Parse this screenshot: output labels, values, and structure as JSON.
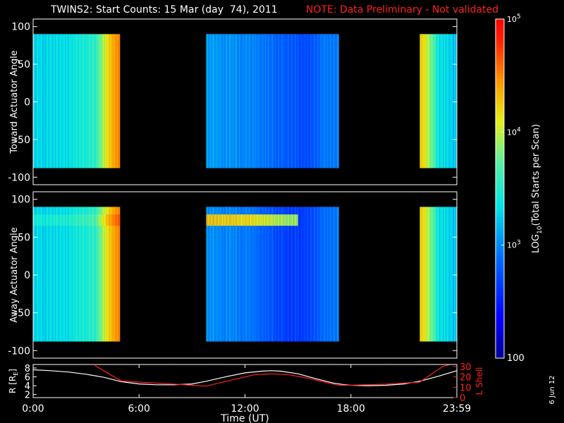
{
  "title": {
    "main": "TWINS2: Start Counts: 15 Mar (day  74), 2011",
    "note": "NOTE: Data Preliminary - Not validated",
    "note_color": "#ff2020"
  },
  "date_stamp": "6 Jun 12",
  "colors": {
    "axes": "#ffffff",
    "background": "#000000",
    "lshell": "#ff2020",
    "radius": "#ffffff"
  },
  "chart_data": [
    {
      "type": "heatmap",
      "ylabel": "Toward Actuator Angle",
      "xlim": [
        0,
        24
      ],
      "ylim": [
        -110,
        110
      ],
      "y_ticks": [
        "-100",
        "-50",
        "0",
        "50",
        "100"
      ],
      "y_tick_values": [
        -100,
        -50,
        0,
        50,
        100
      ],
      "data_angle_range": [
        -88,
        90
      ],
      "data_intervals_hours": [
        [
          0.0,
          4.9
        ],
        [
          9.8,
          17.3
        ],
        [
          21.9,
          24.0
        ]
      ],
      "log_counts_by_hour": [
        [
          0.0,
          3.35
        ],
        [
          2.0,
          3.4
        ],
        [
          3.5,
          3.6
        ],
        [
          4.2,
          4.2
        ],
        [
          4.6,
          4.5
        ],
        [
          4.9,
          4.5
        ],
        [
          9.8,
          3.15
        ],
        [
          11.0,
          3.1
        ],
        [
          12.0,
          3.05
        ],
        [
          13.0,
          3.0
        ],
        [
          14.5,
          2.85
        ],
        [
          15.5,
          2.8
        ],
        [
          16.5,
          3.0
        ],
        [
          17.3,
          3.0
        ],
        [
          21.9,
          4.4
        ],
        [
          22.3,
          4.1
        ],
        [
          23.0,
          3.4
        ],
        [
          24.0,
          3.3
        ]
      ]
    },
    {
      "type": "heatmap",
      "ylabel": "Away Actuator Angle",
      "xlim": [
        0,
        24
      ],
      "ylim": [
        -110,
        110
      ],
      "y_ticks": [
        "-100",
        "-50",
        "0",
        "50",
        "100"
      ],
      "y_tick_values": [
        -100,
        -50,
        0,
        50,
        100
      ],
      "data_angle_range": [
        -88,
        90
      ],
      "data_intervals_hours": [
        [
          0.0,
          4.9
        ],
        [
          9.8,
          17.3
        ],
        [
          21.9,
          24.0
        ]
      ],
      "enhanced_band_angle": [
        65,
        80
      ],
      "log_counts_by_hour": [
        [
          0.0,
          3.35
        ],
        [
          2.0,
          3.4
        ],
        [
          3.5,
          3.6
        ],
        [
          4.2,
          4.2
        ],
        [
          4.6,
          4.5
        ],
        [
          4.9,
          4.5
        ],
        [
          9.8,
          3.1
        ],
        [
          11.0,
          3.05
        ],
        [
          12.0,
          3.0
        ],
        [
          13.0,
          2.9
        ],
        [
          14.5,
          2.7
        ],
        [
          15.5,
          2.75
        ],
        [
          16.5,
          2.95
        ],
        [
          17.3,
          3.0
        ],
        [
          21.9,
          4.4
        ],
        [
          22.3,
          4.1
        ],
        [
          23.0,
          3.4
        ],
        [
          24.0,
          3.3
        ]
      ]
    },
    {
      "type": "line",
      "xlabel": "Time (UT)",
      "ylabel": "R [R",
      "ylabel_sub": "E",
      "ylabel_close": "]",
      "ylabel_right": "L Shell",
      "x_ticks": [
        "0:00",
        "6:00",
        "12:00",
        "18:00",
        "23:59"
      ],
      "x_tick_values": [
        0,
        6,
        12,
        18,
        24
      ],
      "y_ticks_left": [
        "2",
        "4",
        "6",
        "8"
      ],
      "y_tick_values_left": [
        2,
        4,
        6,
        8
      ],
      "ylim_left": [
        1.3,
        8.8
      ],
      "y_ticks_right": [
        "0",
        "10",
        "20",
        "30"
      ],
      "y_tick_values_right": [
        0,
        10,
        20,
        30
      ],
      "ylim_right": [
        0,
        32
      ],
      "series": [
        {
          "axis": "left",
          "color": "#ffffff",
          "x": [
            0,
            1,
            2,
            3,
            4,
            5,
            6,
            7,
            8,
            9,
            9.8,
            11,
            12,
            13,
            13.5,
            14,
            15,
            16,
            17,
            17.5,
            18,
            19,
            20,
            21,
            22,
            23,
            24
          ],
          "y": [
            7.6,
            7.4,
            7.1,
            6.6,
            5.9,
            4.9,
            4.4,
            4.2,
            4.2,
            4.4,
            5.0,
            6.1,
            6.9,
            7.3,
            7.4,
            7.3,
            6.7,
            5.6,
            4.6,
            4.3,
            4.1,
            4.0,
            4.1,
            4.4,
            5.1,
            6.2,
            7.4
          ]
        },
        {
          "axis": "right",
          "color": "#ff2020",
          "x": [
            3.5,
            4.2,
            5.0,
            6,
            7,
            8,
            9,
            9.8,
            10.5,
            11.5,
            12.5,
            13.5,
            14.5,
            15.5,
            16.5,
            17.3,
            18,
            19,
            20,
            21,
            21.9,
            22.5,
            23.2,
            24
          ],
          "y": [
            31,
            24,
            16,
            15,
            14,
            13,
            12,
            11,
            14,
            18,
            22,
            23,
            22,
            19,
            15,
            12,
            12,
            12.5,
            13,
            14,
            15,
            22,
            30,
            34
          ]
        }
      ]
    },
    {
      "type": "heatmap",
      "role": "colorbar",
      "label_prefix": "LOG",
      "label_sub": "10",
      "label_suffix": "(Total Starts per Scan)",
      "scale": "log",
      "range": [
        100,
        100000
      ],
      "tick_values": [
        3,
        4,
        5
      ],
      "tick_labels": [
        {
          "base": "10",
          "exp": "3"
        },
        {
          "base": "10",
          "exp": "4"
        },
        {
          "base": "10",
          "exp": "5"
        }
      ],
      "bottom_label": "100"
    }
  ]
}
